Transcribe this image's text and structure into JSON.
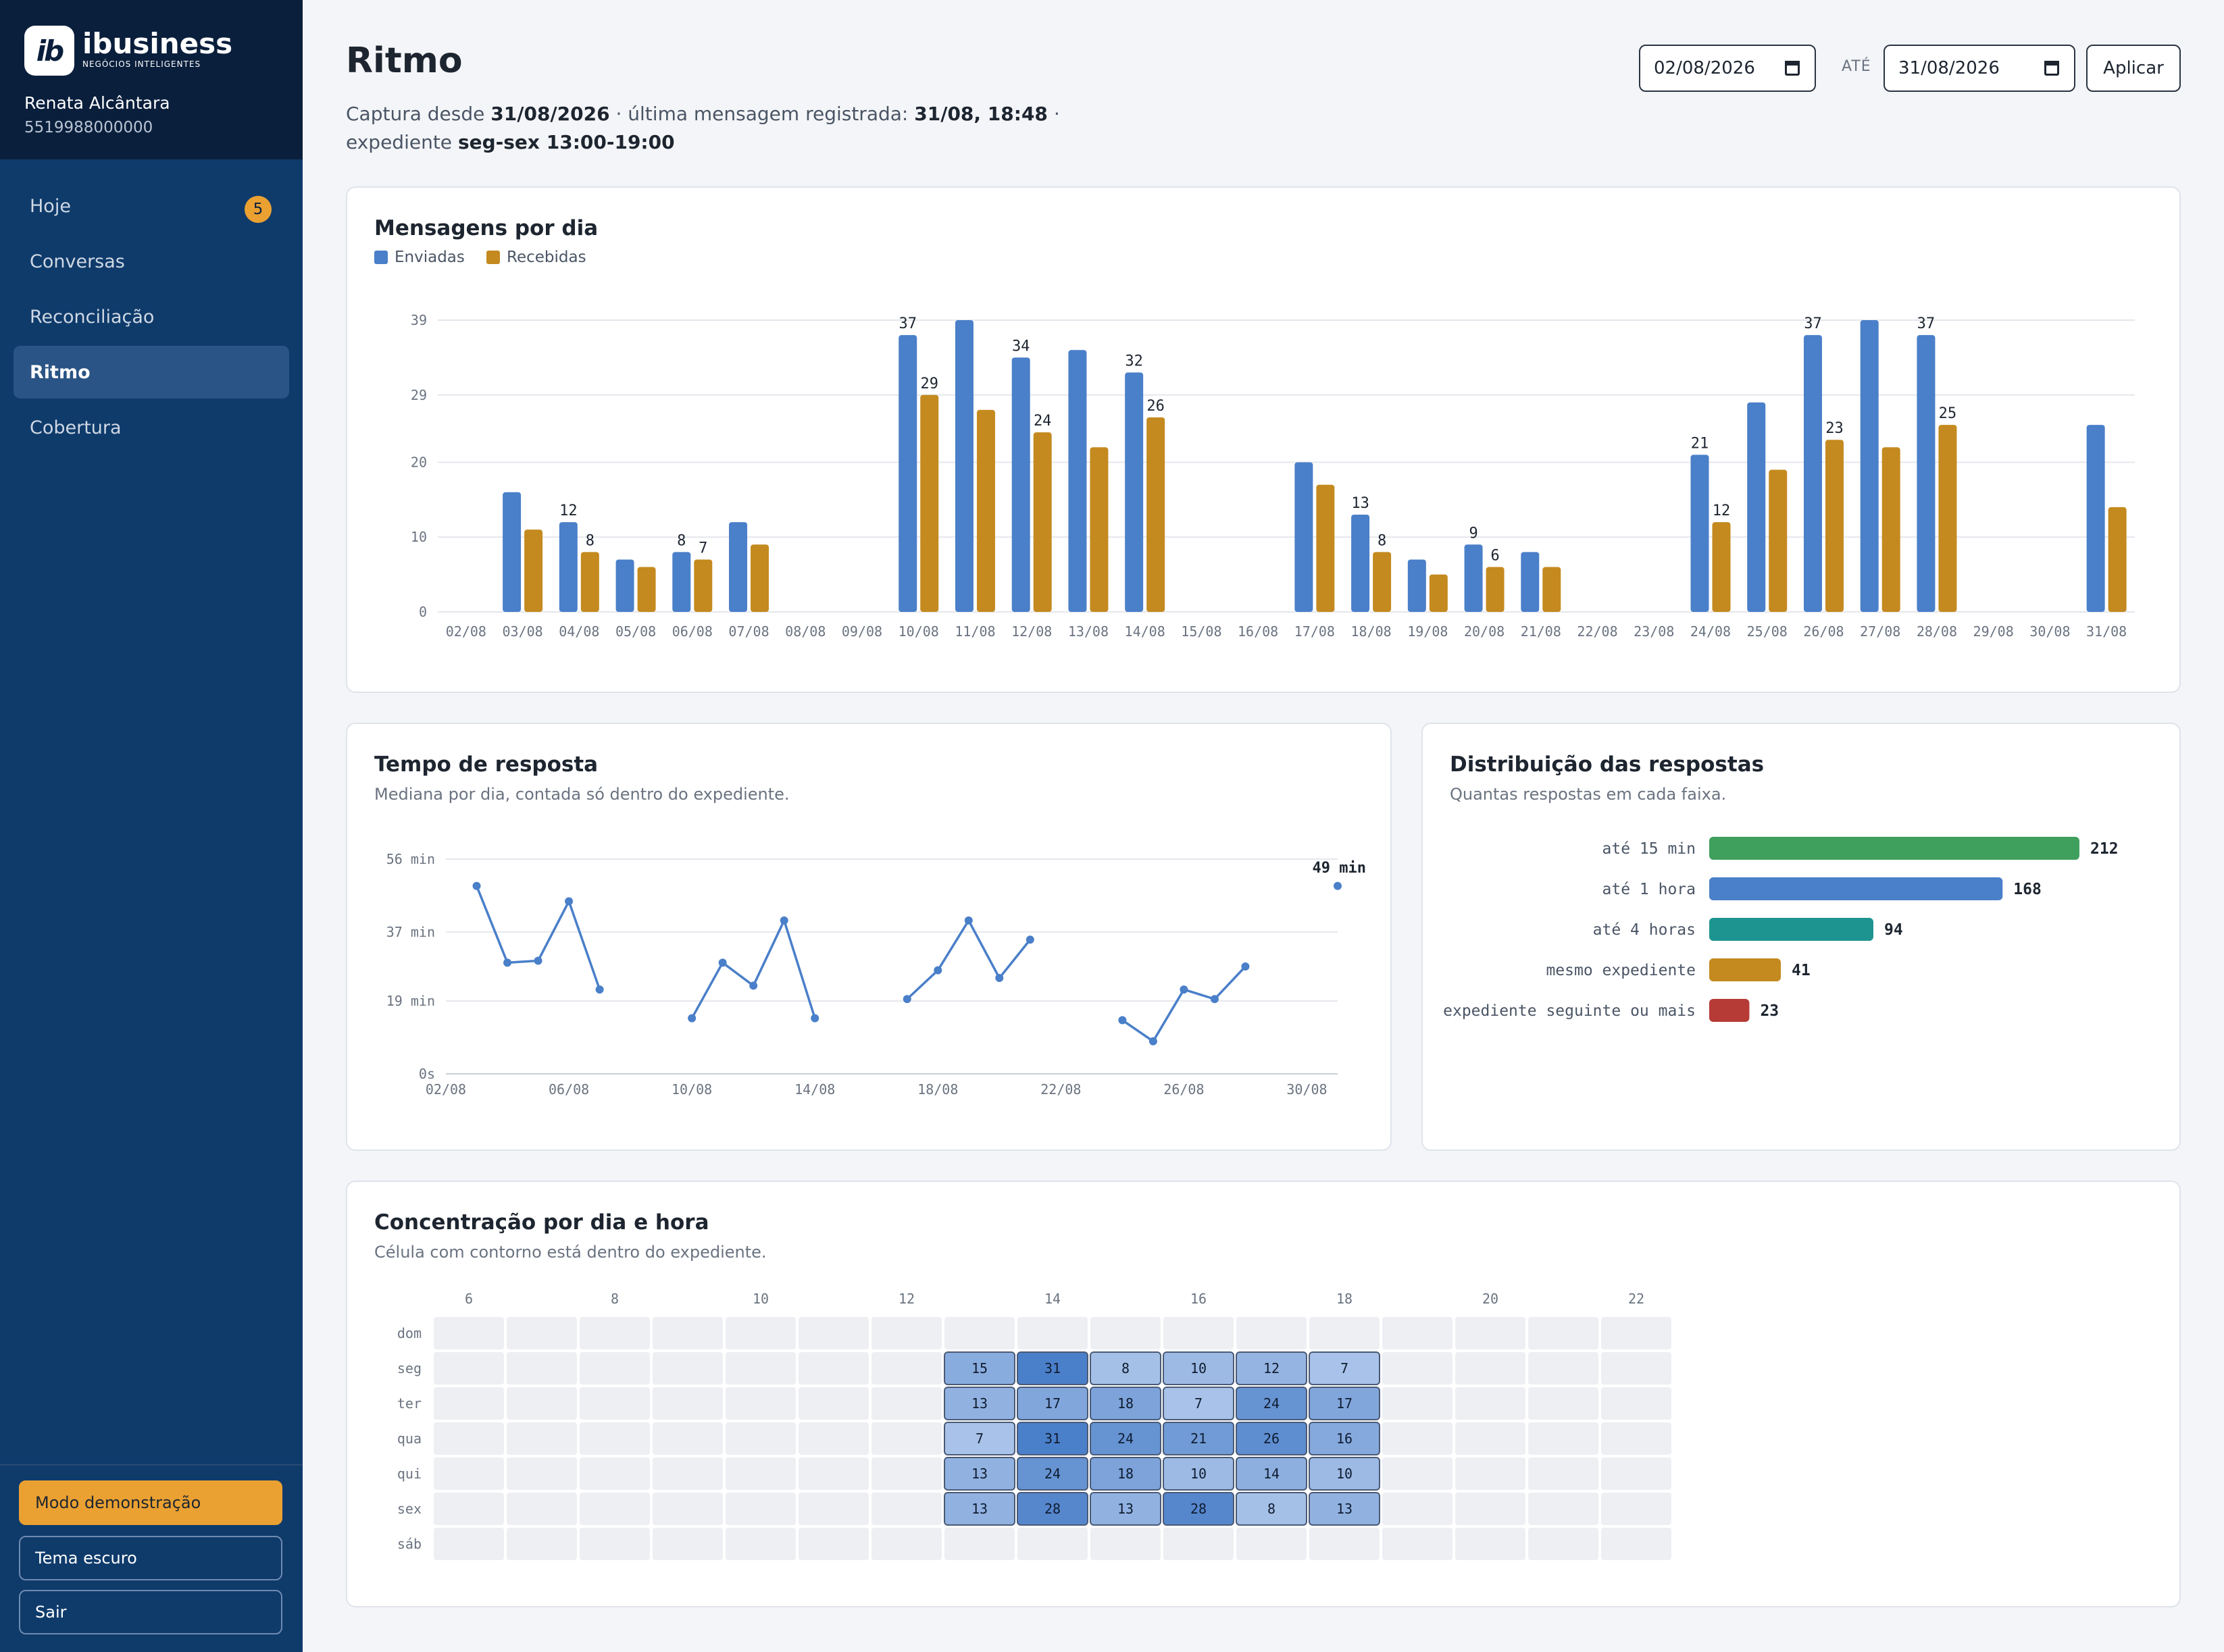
{
  "brand": {
    "logo_mark": "ib",
    "name": "ibusiness",
    "tagline": "NEGÓCIOS INTELIGENTES"
  },
  "user": {
    "name": "Renata Alcântara",
    "phone": "5519988000000"
  },
  "nav": [
    {
      "label": "Hoje",
      "badge": "5"
    },
    {
      "label": "Conversas"
    },
    {
      "label": "Reconciliação"
    },
    {
      "label": "Ritmo",
      "active": true
    },
    {
      "label": "Cobertura"
    }
  ],
  "sidebar_buttons": {
    "demo": "Modo demonstração",
    "dark": "Tema escuro",
    "logout": "Sair"
  },
  "colors": {
    "sidebar": "#0f3b6b",
    "accent": "#eaa132",
    "enviadas": "#4a7fc9",
    "recebidas": "#c48a1f"
  },
  "header": {
    "title": "Ritmo",
    "sub_a": "Captura desde ",
    "sub_b": "31/08/2026",
    "sub_c": " · última mensagem registrada: ",
    "sub_d": "31/08, 18:48",
    "sub_e": " · expediente ",
    "sub_f": "seg-sex 13:00-19:00",
    "date_from": "02/08/2026",
    "date_sep": "ATÉ",
    "date_to": "31/08/2026",
    "apply": "Aplicar"
  },
  "messages_card": {
    "title": "Mensagens por dia",
    "legend": [
      "Enviadas",
      "Recebidas"
    ]
  },
  "response_card": {
    "title": "Tempo de resposta",
    "subtitle": "Mediana por dia, contada só dentro do expediente."
  },
  "distribution_card": {
    "title": "Distribuição das respostas",
    "subtitle": "Quantas respostas em cada faixa."
  },
  "heatmap_card": {
    "title": "Concentração por dia e hora",
    "subtitle": "Célula com contorno está dentro do expediente."
  },
  "chart_data": [
    {
      "type": "bar",
      "title": "Mensagens por dia",
      "categories": [
        "02/08",
        "03/08",
        "04/08",
        "05/08",
        "06/08",
        "07/08",
        "08/08",
        "09/08",
        "10/08",
        "11/08",
        "12/08",
        "13/08",
        "14/08",
        "15/08",
        "16/08",
        "17/08",
        "18/08",
        "19/08",
        "20/08",
        "21/08",
        "22/08",
        "23/08",
        "24/08",
        "25/08",
        "26/08",
        "27/08",
        "28/08",
        "29/08",
        "30/08",
        "31/08"
      ],
      "yticks": [
        "0",
        "10",
        "20",
        "29",
        "39"
      ],
      "ylim": [
        0,
        39
      ],
      "series": [
        {
          "name": "Enviadas",
          "values": [
            0,
            16,
            12,
            7,
            8,
            12,
            0,
            0,
            37,
            39,
            34,
            35,
            32,
            0,
            0,
            20,
            13,
            7,
            9,
            8,
            0,
            0,
            21,
            28,
            37,
            39,
            37,
            0,
            0,
            25
          ]
        },
        {
          "name": "Recebidas",
          "values": [
            0,
            11,
            8,
            6,
            7,
            9,
            0,
            0,
            29,
            27,
            24,
            22,
            26,
            0,
            0,
            17,
            8,
            5,
            6,
            6,
            0,
            0,
            12,
            19,
            23,
            22,
            25,
            0,
            0,
            14
          ]
        }
      ],
      "data_labels": [
        {
          "series": 0,
          "index": 2,
          "text": "12"
        },
        {
          "series": 1,
          "index": 2,
          "text": "8"
        },
        {
          "series": 0,
          "index": 4,
          "text": "8"
        },
        {
          "series": 1,
          "index": 4,
          "text": "7"
        },
        {
          "series": 0,
          "index": 8,
          "text": "37"
        },
        {
          "series": 1,
          "index": 8,
          "text": "29"
        },
        {
          "series": 0,
          "index": 10,
          "text": "34"
        },
        {
          "series": 1,
          "index": 10,
          "text": "24"
        },
        {
          "series": 0,
          "index": 12,
          "text": "32"
        },
        {
          "series": 1,
          "index": 12,
          "text": "26"
        },
        {
          "series": 0,
          "index": 16,
          "text": "13"
        },
        {
          "series": 1,
          "index": 16,
          "text": "8"
        },
        {
          "series": 0,
          "index": 18,
          "text": "9"
        },
        {
          "series": 1,
          "index": 18,
          "text": "6"
        },
        {
          "series": 0,
          "index": 22,
          "text": "21"
        },
        {
          "series": 1,
          "index": 22,
          "text": "12"
        },
        {
          "series": 0,
          "index": 24,
          "text": "37"
        },
        {
          "series": 1,
          "index": 24,
          "text": "23"
        },
        {
          "series": 0,
          "index": 26,
          "text": "37"
        },
        {
          "series": 1,
          "index": 26,
          "text": "25"
        }
      ],
      "legend": "top-left",
      "grid": true
    },
    {
      "type": "line",
      "title": "Tempo de resposta",
      "xticks": [
        {
          "label": "02/08",
          "day": 0
        },
        {
          "label": "06/08",
          "day": 4
        },
        {
          "label": "10/08",
          "day": 8
        },
        {
          "label": "14/08",
          "day": 12
        },
        {
          "label": "18/08",
          "day": 16
        },
        {
          "label": "22/08",
          "day": 20
        },
        {
          "label": "26/08",
          "day": 24
        },
        {
          "label": "30/08",
          "day": 28
        }
      ],
      "yticks": [
        "0s",
        "19 min",
        "37 min",
        "56 min"
      ],
      "ylim": [
        0,
        56
      ],
      "xlim": [
        0,
        29
      ],
      "segments": [
        [
          {
            "day": 1,
            "min": 49
          },
          {
            "day": 2,
            "min": 29
          },
          {
            "day": 3,
            "min": 29.5
          },
          {
            "day": 4,
            "min": 45
          },
          {
            "day": 5,
            "min": 22
          }
        ],
        [
          {
            "day": 8,
            "min": 14.5
          },
          {
            "day": 9,
            "min": 29
          },
          {
            "day": 10,
            "min": 23
          },
          {
            "day": 11,
            "min": 40
          },
          {
            "day": 12,
            "min": 14.5
          }
        ],
        [
          {
            "day": 15,
            "min": 19.5
          },
          {
            "day": 16,
            "min": 27
          },
          {
            "day": 17,
            "min": 40
          },
          {
            "day": 18,
            "min": 25
          },
          {
            "day": 19,
            "min": 35
          }
        ],
        [
          {
            "day": 22,
            "min": 14
          },
          {
            "day": 23,
            "min": 8.5
          },
          {
            "day": 24,
            "min": 22
          },
          {
            "day": 25,
            "min": 19.5
          },
          {
            "day": 26,
            "min": 28
          }
        ],
        [
          {
            "day": 29,
            "min": 49
          }
        ]
      ],
      "last_label": "49 min",
      "grid": true
    },
    {
      "type": "bar",
      "orientation": "horizontal",
      "title": "Distribuição das respostas",
      "categories": [
        "até 15 min",
        "até 1 hora",
        "até 4 horas",
        "mesmo expediente",
        "expediente seguinte ou mais"
      ],
      "values": [
        212,
        168,
        94,
        41,
        23
      ],
      "colors": [
        "#3fa05e",
        "#4a7fc9",
        "#1d9490",
        "#c48a1f",
        "#b63a36"
      ]
    },
    {
      "type": "heatmap",
      "title": "Concentração por dia e hora",
      "x_hours": [
        6,
        7,
        8,
        9,
        10,
        11,
        12,
        13,
        14,
        15,
        16,
        17,
        18,
        19,
        20,
        21,
        22
      ],
      "x_labels": [
        "6",
        "8",
        "10",
        "12",
        "14",
        "16",
        "18",
        "20",
        "22"
      ],
      "y_labels": [
        "dom",
        "seg",
        "ter",
        "qua",
        "qui",
        "sex",
        "sáb"
      ],
      "values_by_hour_13_to_18": [
        [
          0,
          0,
          0,
          0,
          0,
          0
        ],
        [
          15,
          31,
          8,
          10,
          12,
          7
        ],
        [
          13,
          17,
          18,
          7,
          24,
          17
        ],
        [
          7,
          31,
          24,
          21,
          26,
          16
        ],
        [
          13,
          24,
          18,
          10,
          14,
          10
        ],
        [
          13,
          28,
          13,
          28,
          8,
          13
        ],
        [
          0,
          0,
          0,
          0,
          0,
          0
        ]
      ],
      "business_hours": "seg-sex 13:00-19:00"
    }
  ]
}
